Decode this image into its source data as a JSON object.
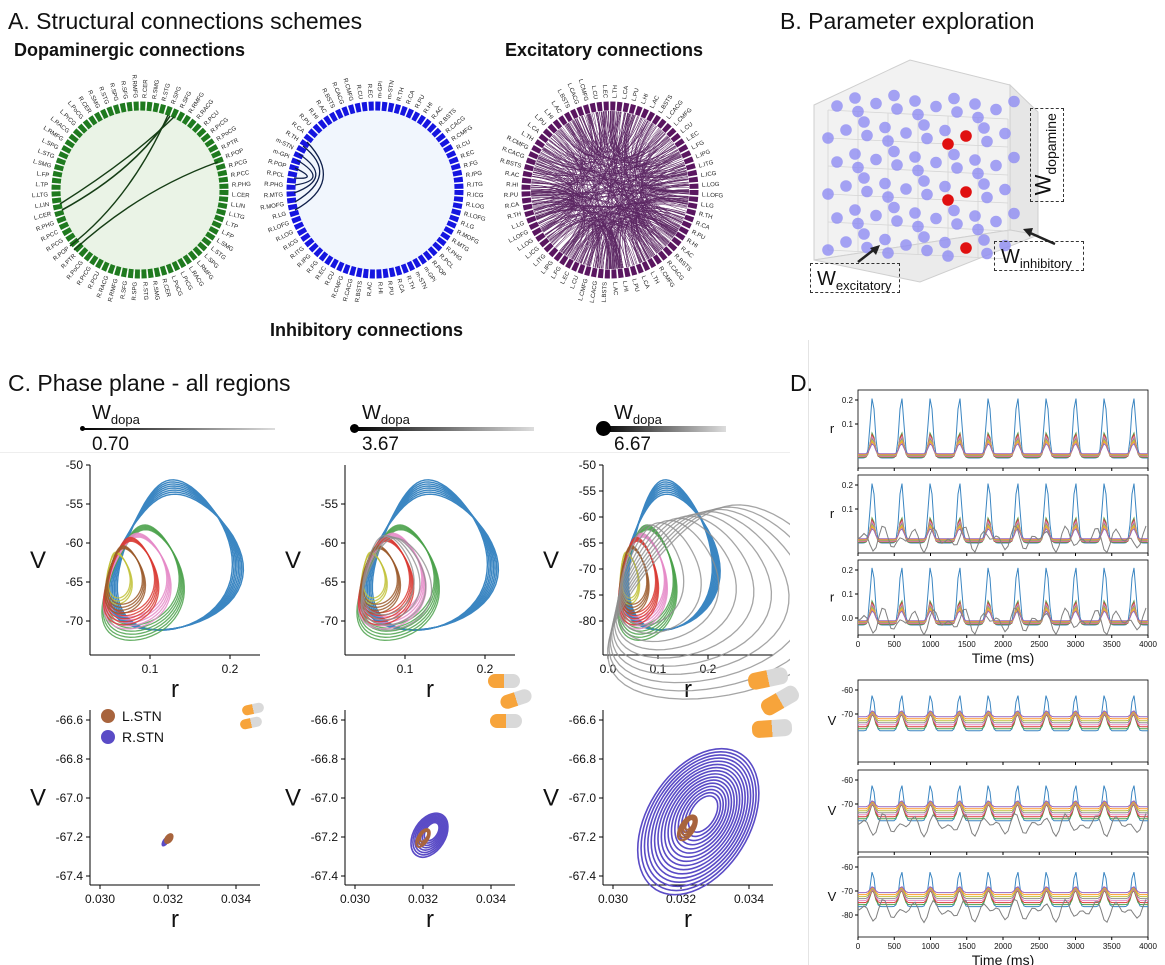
{
  "colors": {
    "dopa": "#1f7a1f",
    "inhib": "#1515e0",
    "excit": "#5a1660",
    "blue": "#3b86c2",
    "green": "#4ca24c",
    "red": "#d93b34",
    "pink": "#e58bc8",
    "gray": "#8f8f8f",
    "olive": "#c2c23a",
    "brown": "#9b5a2c",
    "stn_l": "#a8643d",
    "stn_r": "#5a4bc6"
  },
  "panelA": {
    "heading": "A.  Structural connections schemes",
    "dopa_title": "Dopaminergic connections",
    "inhib_title": "Inhibitory connections",
    "excit_title": "Excitatory connections",
    "dopa_labels": [
      "R.CER",
      "R.SMG",
      "R.STG",
      "R.SPG",
      "R.SFG",
      "R.RMFG",
      "R.RACG",
      "R.PCU",
      "R.PrCG",
      "R.PoCG",
      "R.PTR",
      "R.POP",
      "R.PCG",
      "R.PCC",
      "R.PHG",
      "L.CER",
      "L.LIN",
      "L.LTG",
      "L.TP",
      "L.FP",
      "L.SMG",
      "L.STG",
      "L.SPG",
      "L.RMFG",
      "L.RACG",
      "L.PrCG",
      "L.PoCG"
    ],
    "inhib_labels": [
      "m-GPi",
      "m-STN",
      "R.TH",
      "R.CA",
      "R.PU",
      "R.HI",
      "R.AC",
      "R.BSTS",
      "R.CACG",
      "R.CMFG",
      "R.CU",
      "R.EC",
      "R.FG",
      "R.IPG",
      "R.ITG",
      "R.ICG",
      "R.LOG",
      "R.LOFG",
      "R.LG",
      "R.MOFG",
      "R.MTG",
      "R.PHG",
      "R.PCL",
      "R.POP"
    ],
    "excit_labels": [
      "L.TH",
      "L.CA",
      "L.PU",
      "L.HI",
      "L.AC",
      "L.BSTS",
      "L.CACG",
      "L.CMFG",
      "L.CU",
      "L.EC",
      "L.FG",
      "L.IPG",
      "L.ITG",
      "L.ICG",
      "L.LOG",
      "L.LOFG",
      "L.LG",
      "R.TH",
      "R.CA",
      "R.PU",
      "R.HI",
      "R.AC",
      "R.BSTS",
      "R.CACG",
      "R.CMFG"
    ]
  },
  "panelB": {
    "heading": "B.  Parameter exploration",
    "label_dopamine_main": "W",
    "label_dopamine_sub": "dopamine",
    "label_inhibitory_main": "W",
    "label_inhibitory_sub": "inhibitory",
    "label_excitatory_main": "W",
    "label_excitatory_sub": "excitatory"
  },
  "panelC": {
    "heading": "C.  Phase plane - all regions",
    "wdopa_main": "W",
    "wdopa_sub": "dopa",
    "wdopa_values": [
      "0.70",
      "3.67",
      "6.67"
    ],
    "xlabel": "r",
    "ylabel": "V",
    "top_xticks": [
      "0.1",
      "0.2"
    ],
    "top_yticks": [
      "-50",
      "-55",
      "-60",
      "-65",
      "-70"
    ],
    "top3_xticks": [
      "0.0",
      "0.1",
      "0.2"
    ],
    "top3_yticks": [
      "-50",
      "-55",
      "-60",
      "-65",
      "-70",
      "-75",
      "-80"
    ],
    "bottom_xticks": [
      "0.030",
      "0.032",
      "0.034"
    ],
    "bottom_yticks": [
      "-66.6",
      "-66.8",
      "-67.0",
      "-67.2",
      "-67.4"
    ],
    "legend": [
      "L.STN",
      "R.STN"
    ]
  },
  "panelD": {
    "heading": "D.",
    "r_label": "r",
    "v_label": "V",
    "xlabel": "Time (ms)",
    "r_yticks_12": [
      "0.2",
      "0.1"
    ],
    "r_yticks_3": [
      "0.2",
      "0.1",
      "0.0"
    ],
    "v_yticks_12": [
      "-60",
      "-70"
    ],
    "v_yticks_3": [
      "-60",
      "-70",
      "-80"
    ],
    "xticks": [
      "0",
      "500",
      "1000",
      "1500",
      "2000",
      "2500",
      "3000",
      "3500",
      "4000"
    ]
  }
}
